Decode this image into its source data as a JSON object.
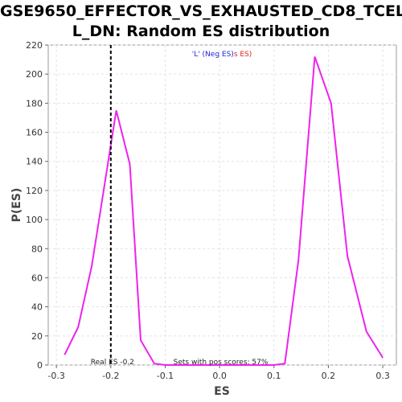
{
  "chart_data": {
    "type": "line",
    "title_line1": "GSE9650_EFFECTOR_VS_EXHAUSTED_CD8_TCEL",
    "title_line2": "L_DN: Random ES distribution",
    "xlabel": "ES",
    "ylabel": "P(ES)",
    "xlim": [
      -0.315,
      0.325
    ],
    "ylim": [
      0,
      220
    ],
    "x_ticks": [
      -0.3,
      -0.2,
      -0.1,
      0.0,
      0.1,
      0.2,
      0.3
    ],
    "x_tick_labels": [
      "-0.3",
      "-0.2",
      "-0.1",
      "0.0",
      "0.1",
      "0.2",
      "0.3"
    ],
    "y_ticks": [
      0,
      20,
      40,
      60,
      80,
      100,
      120,
      140,
      160,
      180,
      200,
      220
    ],
    "y_tick_labels": [
      "0",
      "20",
      "40",
      "60",
      "80",
      "100",
      "120",
      "140",
      "160",
      "180",
      "200",
      "220"
    ],
    "grid": true,
    "series": [
      {
        "color": "#ee22ee",
        "x": [
          -0.285,
          -0.26,
          -0.235,
          -0.19,
          -0.165,
          -0.145,
          -0.12,
          -0.1,
          0.1,
          0.12,
          0.145,
          0.175,
          0.205,
          0.235,
          0.27,
          0.3
        ],
        "y": [
          7,
          26,
          68,
          175,
          138,
          17,
          1,
          0,
          0,
          1,
          72,
          212,
          180,
          75,
          23,
          5
        ]
      }
    ],
    "real_es": -0.2,
    "real_es_label": "Real ES -0.2",
    "pos_scores_label": "Sets with pos scores: 57%",
    "legend": {
      "part1": "'L' (Neg ES)",
      "part2": "s ES)",
      "color1": "#2222dd",
      "color2": "#dd2222",
      "placement": "top-center"
    }
  }
}
